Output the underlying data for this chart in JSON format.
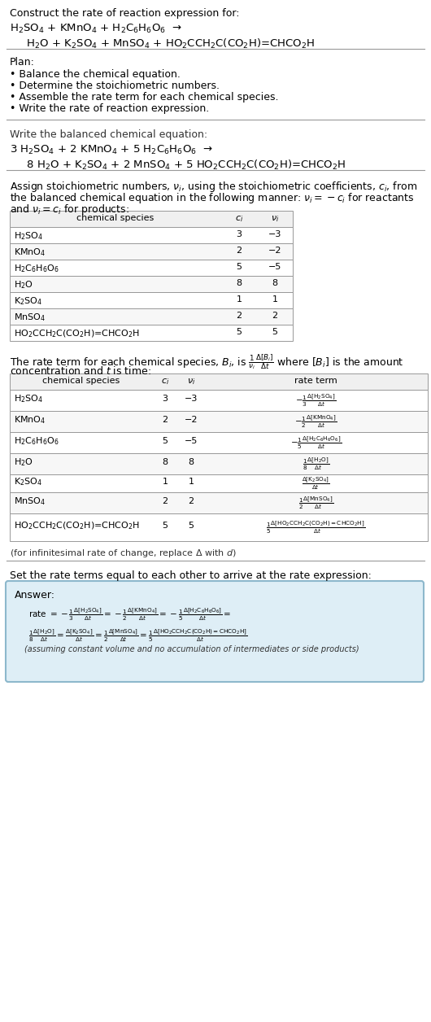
{
  "bg_color": "#ffffff",
  "title": "Construct the rate of reaction expression for:",
  "rxn1": "H$_2$SO$_4$ + KMnO$_4$ + H$_2$C$_6$H$_6$O$_6$  →",
  "rxn2": "  H$_2$O + K$_2$SO$_4$ + MnSO$_4$ + HO$_2$CCH$_2$C(CO$_2$H)=CHCO$_2$H",
  "plan_title": "Plan:",
  "plan_items": [
    "• Balance the chemical equation.",
    "• Determine the stoichiometric numbers.",
    "• Assemble the rate term for each chemical species.",
    "• Write the rate of reaction expression."
  ],
  "bal_title": "Write the balanced chemical equation:",
  "bal1": "3 H$_2$SO$_4$ + 2 KMnO$_4$ + 5 H$_2$C$_6$H$_6$O$_6$  →",
  "bal2": "  8 H$_2$O + K$_2$SO$_4$ + 2 MnSO$_4$ + 5 HO$_2$CCH$_2$C(CO$_2$H)=CHCO$_2$H",
  "assign1": "Assign stoichiometric numbers, $\\nu_i$, using the stoichiometric coefficients, $c_i$, from",
  "assign2": "the balanced chemical equation in the following manner: $\\nu_i = -c_i$ for reactants",
  "assign3": "and $\\nu_i = c_i$ for products:",
  "t1_headers": [
    "chemical species",
    "$c_i$",
    "$\\nu_i$"
  ],
  "t1_rows": [
    [
      "H$_2$SO$_4$",
      "3",
      "−3"
    ],
    [
      "KMnO$_4$",
      "2",
      "−2"
    ],
    [
      "H$_2$C$_6$H$_6$O$_6$",
      "5",
      "−5"
    ],
    [
      "H$_2$O",
      "8",
      "8"
    ],
    [
      "K$_2$SO$_4$",
      "1",
      "1"
    ],
    [
      "MnSO$_4$",
      "2",
      "2"
    ],
    [
      "HO$_2$CCH$_2$C(CO$_2$H)=CHCO$_2$H",
      "5",
      "5"
    ]
  ],
  "rate1": "The rate term for each chemical species, $B_i$, is $\\frac{1}{\\nu_i}\\frac{\\Delta[B_i]}{\\Delta t}$ where $[B_i]$ is the amount",
  "rate2": "concentration and $t$ is time:",
  "t2_headers": [
    "chemical species",
    "$c_i$",
    "$\\nu_i$",
    "rate term"
  ],
  "t2_rows": [
    [
      "H$_2$SO$_4$",
      "3",
      "−3",
      "$-\\frac{1}{3}\\frac{\\Delta[\\mathrm{H_2SO_4}]}{\\Delta t}$"
    ],
    [
      "KMnO$_4$",
      "2",
      "−2",
      "$-\\frac{1}{2}\\frac{\\Delta[\\mathrm{KMnO_4}]}{\\Delta t}$"
    ],
    [
      "H$_2$C$_6$H$_6$O$_6$",
      "5",
      "−5",
      "$-\\frac{1}{5}\\frac{\\Delta[\\mathrm{H_2C_6H_6O_6}]}{\\Delta t}$"
    ],
    [
      "H$_2$O",
      "8",
      "8",
      "$\\frac{1}{8}\\frac{\\Delta[\\mathrm{H_2O}]}{\\Delta t}$"
    ],
    [
      "K$_2$SO$_4$",
      "1",
      "1",
      "$\\frac{\\Delta[\\mathrm{K_2SO_4}]}{\\Delta t}$"
    ],
    [
      "MnSO$_4$",
      "2",
      "2",
      "$\\frac{1}{2}\\frac{\\Delta[\\mathrm{MnSO_4}]}{\\Delta t}$"
    ],
    [
      "HO$_2$CCH$_2$C(CO$_2$H)=CHCO$_2$H",
      "5",
      "5",
      "$\\frac{1}{5}\\frac{\\Delta[\\mathrm{HO_2CCH_2C(CO_2H){=}CHCO_2H}]}{\\Delta t}$"
    ]
  ],
  "inf_note": "(for infinitesimal rate of change, replace Δ with $d$)",
  "set_rate": "Set the rate terms equal to each other to arrive at the rate expression:",
  "ans_box_color": "#deeef6",
  "ans_border_color": "#8db8cc",
  "ans_label": "Answer:",
  "ans1": "rate $= -\\frac{1}{3}\\frac{\\Delta[\\mathrm{H_2SO_4}]}{\\Delta t} = -\\frac{1}{2}\\frac{\\Delta[\\mathrm{KMnO_4}]}{\\Delta t} = -\\frac{1}{5}\\frac{\\Delta[\\mathrm{H_2C_6H_6O_6}]}{\\Delta t} =$",
  "ans2": "$\\frac{1}{8}\\frac{\\Delta[\\mathrm{H_2O}]}{\\Delta t} = \\frac{\\Delta[\\mathrm{K_2SO_4}]}{\\Delta t} = \\frac{1}{2}\\frac{\\Delta[\\mathrm{MnSO_4}]}{\\Delta t} = \\frac{1}{5}\\frac{\\Delta[\\mathrm{HO_2CCH_2C(CO_2H){=}CHCO_2H}]}{\\Delta t}$",
  "ans_foot": "(assuming constant volume and no accumulation of intermediates or side products)"
}
